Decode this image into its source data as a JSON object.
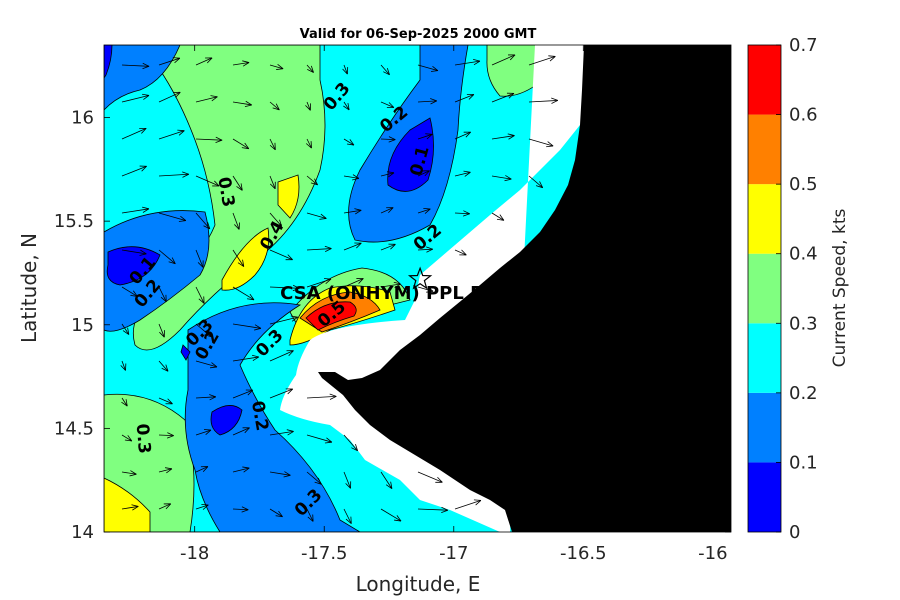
{
  "chart_data": {
    "type": "heatmap",
    "title": "Valid for 06-Sep-2025 2000 GMT",
    "xlabel": "Longitude, E",
    "ylabel": "Latitude, N",
    "xlim": [
      -18.35,
      -15.93
    ],
    "ylim": [
      14.0,
      16.35
    ],
    "x_ticks": [
      -18,
      -17.5,
      -17,
      -16.5,
      -16
    ],
    "x_tick_labels": [
      "-18",
      "-17.5",
      "-17",
      "-16.5",
      "-16"
    ],
    "y_ticks": [
      14,
      14.5,
      15,
      15.5,
      16
    ],
    "y_tick_labels": [
      "14",
      "14.5",
      "15",
      "15.5",
      "16"
    ],
    "colorbar": {
      "label": "Current Speed, kts",
      "range": [
        0,
        0.7
      ],
      "levels": [
        0,
        0.1,
        0.2,
        0.3,
        0.4,
        0.5,
        0.6,
        0.7
      ],
      "level_labels": [
        "0",
        "0.1",
        "0.2",
        "0.3",
        "0.4",
        "0.5",
        "0.6",
        "0.7"
      ],
      "colors": [
        "#0000ff",
        "#0080ff",
        "#00ffff",
        "#80ff80",
        "#ffff00",
        "#ff8000",
        "#ff0000"
      ]
    },
    "contour_labels": [
      {
        "text": "0.3",
        "lon": -17.45,
        "lat": 16.1,
        "angle": -50
      },
      {
        "text": "0.2",
        "lon": -17.23,
        "lat": 15.99,
        "angle": -40
      },
      {
        "text": "0.1",
        "lon": -17.13,
        "lat": 15.79,
        "angle": -75
      },
      {
        "text": "0.3",
        "lon": -17.88,
        "lat": 15.64,
        "angle": 80
      },
      {
        "text": "0.4",
        "lon": -17.7,
        "lat": 15.43,
        "angle": -60
      },
      {
        "text": "0.2",
        "lon": -17.1,
        "lat": 15.42,
        "angle": -40
      },
      {
        "text": "0.1",
        "lon": -18.2,
        "lat": 15.26,
        "angle": -50
      },
      {
        "text": "0.2",
        "lon": -18.18,
        "lat": 15.15,
        "angle": -50
      },
      {
        "text": "0.3",
        "lon": -17.98,
        "lat": 14.96,
        "angle": -45
      },
      {
        "text": "0.2",
        "lon": -17.95,
        "lat": 14.9,
        "angle": -60
      },
      {
        "text": "0.3",
        "lon": -17.71,
        "lat": 14.91,
        "angle": -45
      },
      {
        "text": "0.5",
        "lon": -17.47,
        "lat": 15.05,
        "angle": -40
      },
      {
        "text": "0.2",
        "lon": -17.75,
        "lat": 14.56,
        "angle": 80
      },
      {
        "text": "0.3",
        "lon": -18.2,
        "lat": 14.45,
        "angle": 85
      },
      {
        "text": "0.3",
        "lon": -17.56,
        "lat": 14.14,
        "angle": -45
      }
    ],
    "station": {
      "label": "CSA (ONHYM) PPL ES",
      "lon": -17.13,
      "lat": 15.22
    }
  }
}
